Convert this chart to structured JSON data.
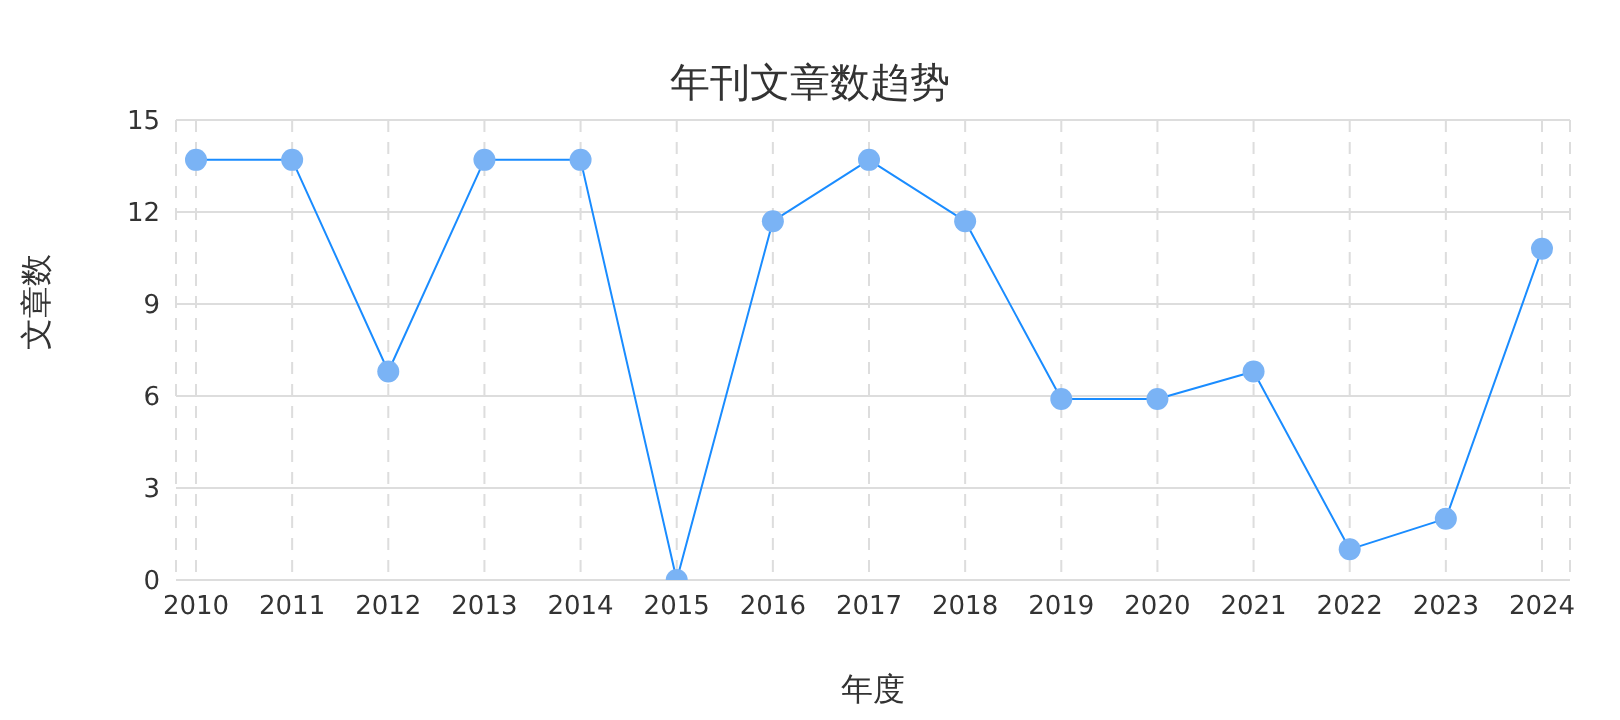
{
  "chart_data": {
    "type": "line",
    "title": "年刊文章数趋势",
    "xlabel": "年度",
    "ylabel": "文章数",
    "categories": [
      "2010",
      "2011",
      "2012",
      "2013",
      "2014",
      "2015",
      "2016",
      "2017",
      "2018",
      "2019",
      "2020",
      "2021",
      "2022",
      "2023",
      "2024"
    ],
    "series": [
      {
        "color": "#1a8cff",
        "values": [
          13.7,
          13.7,
          6.8,
          13.7,
          13.7,
          0,
          11.7,
          13.7,
          11.7,
          5.9,
          5.9,
          6.8,
          1.0,
          2.0,
          10.8
        ]
      }
    ],
    "ylim": [
      0,
      15
    ],
    "yticks": [
      0,
      3,
      6,
      9,
      12,
      15
    ],
    "grid": true,
    "marker": "circle",
    "line_style": "solid",
    "legend": false
  }
}
